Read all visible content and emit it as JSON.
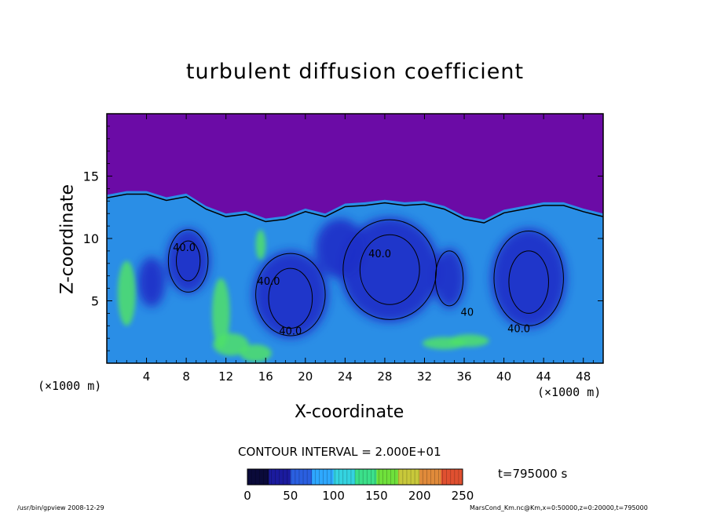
{
  "chart_data": {
    "type": "heatmap",
    "title": "turbulent diffusion coefficient",
    "xlabel": "X-coordinate",
    "ylabel": "Z-coordinate",
    "x_unit_label": "(×1000 m)",
    "x_ticks": [
      4,
      8,
      12,
      16,
      20,
      24,
      28,
      32,
      36,
      40,
      44,
      48
    ],
    "y_ticks": [
      5,
      10,
      15
    ],
    "xlim": [
      0,
      50
    ],
    "ylim": [
      0,
      20
    ],
    "contour_labels": [
      {
        "text": "40.0",
        "x": 7.8,
        "z": 9.0
      },
      {
        "text": "40.0",
        "x": 16.3,
        "z": 6.3
      },
      {
        "text": "40.0",
        "x": 18.5,
        "z": 2.3
      },
      {
        "text": "40.0",
        "x": 27.5,
        "z": 8.5
      },
      {
        "text": "40.0",
        "x": 41.5,
        "z": 2.5
      },
      {
        "text": "40",
        "x": 36.3,
        "z": 3.8
      }
    ],
    "colorbar": {
      "ticks": [
        0,
        50,
        100,
        150,
        200,
        250
      ],
      "range": [
        0,
        250
      ],
      "colors": [
        "#0a0a3a",
        "#1b1b9e",
        "#2a5fe0",
        "#2ea8ff",
        "#34d3e0",
        "#3be08a",
        "#6fe03b",
        "#c8c83a",
        "#e08a3a",
        "#e05030"
      ]
    },
    "contour_interval": "CONTOUR INTERVAL = 2.000E+01",
    "time_label": "t=795000 s"
  },
  "footer": {
    "left": "/usr/bin/gpview  2008-12-29",
    "right": "MarsCond_Km.nc@Km,x=0:50000,z=0:20000,t=795000"
  },
  "colors": {
    "stratosphere": "#6b0ba6",
    "field_background": "#2a8ee6",
    "low_value": "#1f2fc8",
    "high_value": "#4fe06a"
  }
}
